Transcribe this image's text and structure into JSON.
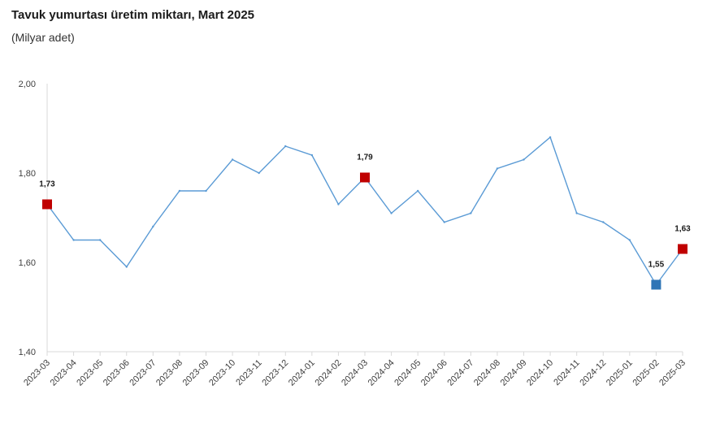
{
  "header": {
    "title": "Tavuk yumurtası üretim miktarı, Mart 2025",
    "subtitle": "(Milyar adet)"
  },
  "colors": {
    "line": "#5b9bd5",
    "highlight_red": "#c00000",
    "highlight_blue": "#2e75b6",
    "axis": "#d9d9d9"
  },
  "chart_data": {
    "type": "line",
    "title": "Tavuk yumurtası üretim miktarı, Mart 2025",
    "subtitle": "(Milyar adet)",
    "xlabel": "",
    "ylabel": "",
    "ylim": [
      1.4,
      2.0
    ],
    "yticks": [
      "1,40",
      "1,60",
      "1,80",
      "2,00"
    ],
    "ytick_values": [
      1.4,
      1.6,
      1.8,
      2.0
    ],
    "grid": false,
    "categories": [
      "2023-03",
      "2023-04",
      "2023-05",
      "2023-06",
      "2023-07",
      "2023-08",
      "2023-09",
      "2023-10",
      "2023-11",
      "2023-12",
      "2024-01",
      "2024-02",
      "2024-03",
      "2024-04",
      "2024-05",
      "2024-06",
      "2024-07",
      "2024-08",
      "2024-09",
      "2024-10",
      "2024-11",
      "2024-12",
      "2025-01",
      "2025-02",
      "2025-03"
    ],
    "series": [
      {
        "values": [
          1.73,
          1.65,
          1.65,
          1.59,
          1.68,
          1.76,
          1.76,
          1.83,
          1.8,
          1.86,
          1.84,
          1.73,
          1.79,
          1.71,
          1.76,
          1.69,
          1.71,
          1.81,
          1.83,
          1.88,
          1.71,
          1.69,
          1.65,
          1.55,
          1.63
        ]
      }
    ],
    "highlights": [
      {
        "index": 0,
        "label": "1,73",
        "color": "red"
      },
      {
        "index": 12,
        "label": "1,79",
        "color": "red"
      },
      {
        "index": 23,
        "label": "1,55",
        "color": "blue"
      },
      {
        "index": 24,
        "label": "1,63",
        "color": "red"
      }
    ]
  }
}
